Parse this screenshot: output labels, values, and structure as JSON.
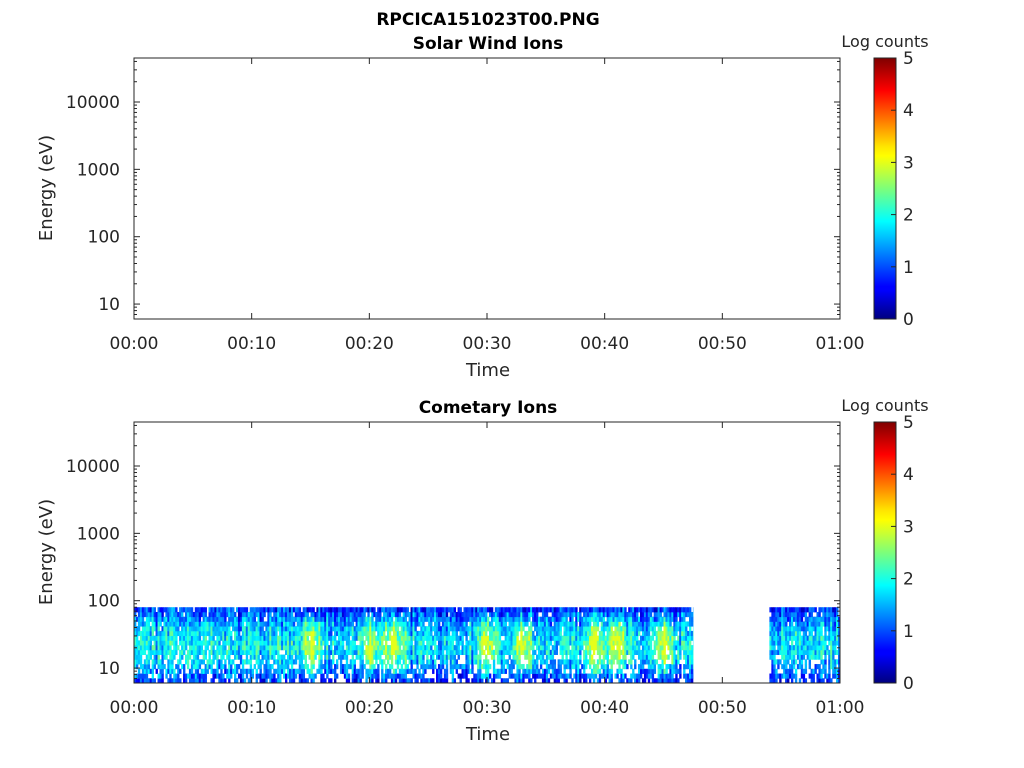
{
  "figure_title": "RPCICA151023T00.PNG",
  "colors": {
    "axis": "#262626",
    "background": "#ffffff"
  },
  "chart_data": [
    {
      "type": "heatmap",
      "title": "Solar Wind Ions",
      "xlabel": "Time",
      "ylabel": "Energy (eV)",
      "xticks": [
        "00:00",
        "00:10",
        "00:20",
        "00:30",
        "00:40",
        "00:50",
        "01:00"
      ],
      "xlim_minutes": [
        0,
        60
      ],
      "yscale": "log",
      "ylim": [
        6,
        45000
      ],
      "yticks": [
        10,
        100,
        1000,
        10000
      ],
      "ytick_labels": [
        "10",
        "100",
        "1000",
        "10000"
      ],
      "colorbar": {
        "label": "Log counts",
        "range": [
          0,
          5
        ],
        "ticks": [
          "0",
          "1",
          "2",
          "3",
          "4",
          "5"
        ],
        "colormap": "jet"
      },
      "data": "no counts (empty)"
    },
    {
      "type": "heatmap",
      "title": "Cometary Ions",
      "xlabel": "Time",
      "ylabel": "Energy (eV)",
      "xticks": [
        "00:00",
        "00:10",
        "00:20",
        "00:30",
        "00:40",
        "00:50",
        "01:00"
      ],
      "xlim_minutes": [
        0,
        60
      ],
      "yscale": "log",
      "ylim": [
        6,
        45000
      ],
      "yticks": [
        10,
        100,
        1000,
        10000
      ],
      "ytick_labels": [
        "10",
        "100",
        "1000",
        "10000"
      ],
      "colorbar": {
        "label": "Log counts",
        "range": [
          0,
          5
        ],
        "ticks": [
          "0",
          "1",
          "2",
          "3",
          "4",
          "5"
        ],
        "colormap": "jet"
      },
      "energy_band_eV": [
        6,
        80
      ],
      "data_segments_minutes": [
        [
          0,
          47.5
        ],
        [
          54,
          60
        ]
      ],
      "typical_log_counts": [
        0.5,
        3
      ],
      "peak_log_counts": 3,
      "peak_times_minutes": [
        15,
        20,
        22,
        30,
        33,
        39,
        41,
        45
      ]
    }
  ]
}
